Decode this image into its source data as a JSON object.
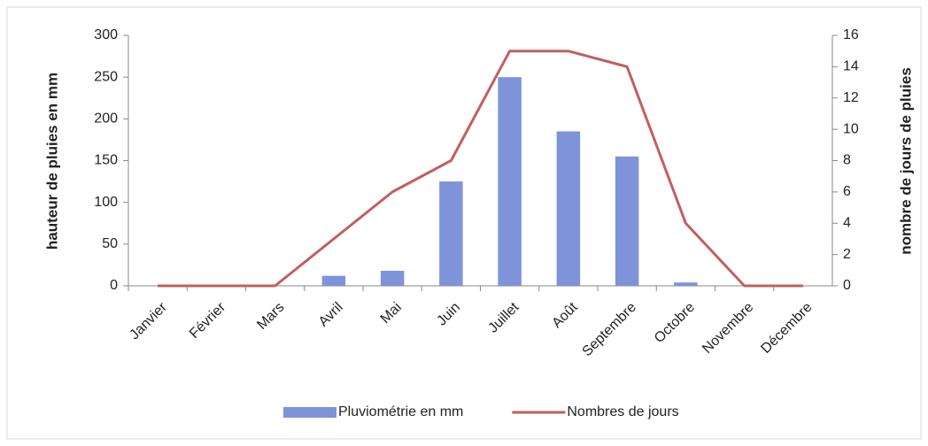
{
  "chart_data": {
    "type": "bar-line",
    "ylabel": "hauteur de pluies en mm",
    "y2label": "nombre de jours de pluies",
    "categories": [
      "Janvier",
      "Février",
      "Mars",
      "Avril",
      "Mai",
      "Juin",
      "Juillet",
      "Août",
      "Septembre",
      "Octobre",
      "Novembre",
      "Décembre"
    ],
    "series": [
      {
        "name": "Pluviométrie en mm",
        "type": "bar",
        "color": "#7f93d8",
        "values": [
          0,
          0,
          0,
          12,
          18,
          125,
          250,
          185,
          155,
          4,
          0,
          0
        ]
      },
      {
        "name": "Nombres de jours",
        "type": "line",
        "axis": "y2",
        "color": "#c0605e",
        "values": [
          0,
          0,
          0,
          3,
          6,
          8,
          15,
          15,
          14,
          4,
          0,
          0
        ]
      }
    ],
    "ylim": [
      0,
      300
    ],
    "yticks": [
      0,
      50,
      100,
      150,
      200,
      250,
      300
    ],
    "y2lim": [
      0,
      16
    ],
    "y2ticks": [
      0,
      2,
      4,
      6,
      8,
      10,
      12,
      14,
      16
    ],
    "legend": "bottom"
  }
}
